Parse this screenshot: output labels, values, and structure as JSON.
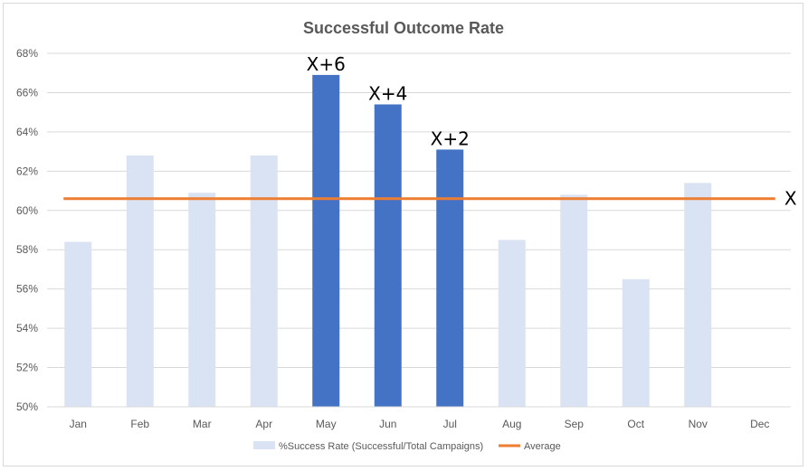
{
  "chart_data": {
    "type": "bar",
    "title": "Successful Outcome Rate",
    "xlabel": "",
    "ylabel": "",
    "categories": [
      "Jan",
      "Feb",
      "Mar",
      "Apr",
      "May",
      "Jun",
      "Jul",
      "Aug",
      "Sep",
      "Oct",
      "Nov",
      "Dec"
    ],
    "series": [
      {
        "name": "%Success Rate (Successful/Total Campaigns)",
        "kind": "bar",
        "values": [
          58.4,
          62.8,
          60.9,
          62.8,
          66.9,
          65.4,
          63.1,
          58.5,
          60.8,
          56.5,
          61.4,
          null
        ],
        "colors": [
          "#dae3f3",
          "#dae3f3",
          "#dae3f3",
          "#dae3f3",
          "#4472c4",
          "#4472c4",
          "#4472c4",
          "#dae3f3",
          "#dae3f3",
          "#dae3f3",
          "#dae3f3",
          "#dae3f3"
        ]
      },
      {
        "name": "Average",
        "kind": "line",
        "value": 60.6,
        "color": "#ed7d31"
      }
    ],
    "ylim": [
      50,
      68
    ],
    "ytick_step": 2,
    "ytick_format": "percent",
    "grid": true,
    "legend_position": "bottom",
    "annotations": [
      {
        "text": "X+6",
        "category": "May"
      },
      {
        "text": "X+4",
        "category": "Jun"
      },
      {
        "text": "X+2",
        "category": "Jul"
      },
      {
        "text": "X",
        "anchor": "average-line-end"
      }
    ]
  }
}
